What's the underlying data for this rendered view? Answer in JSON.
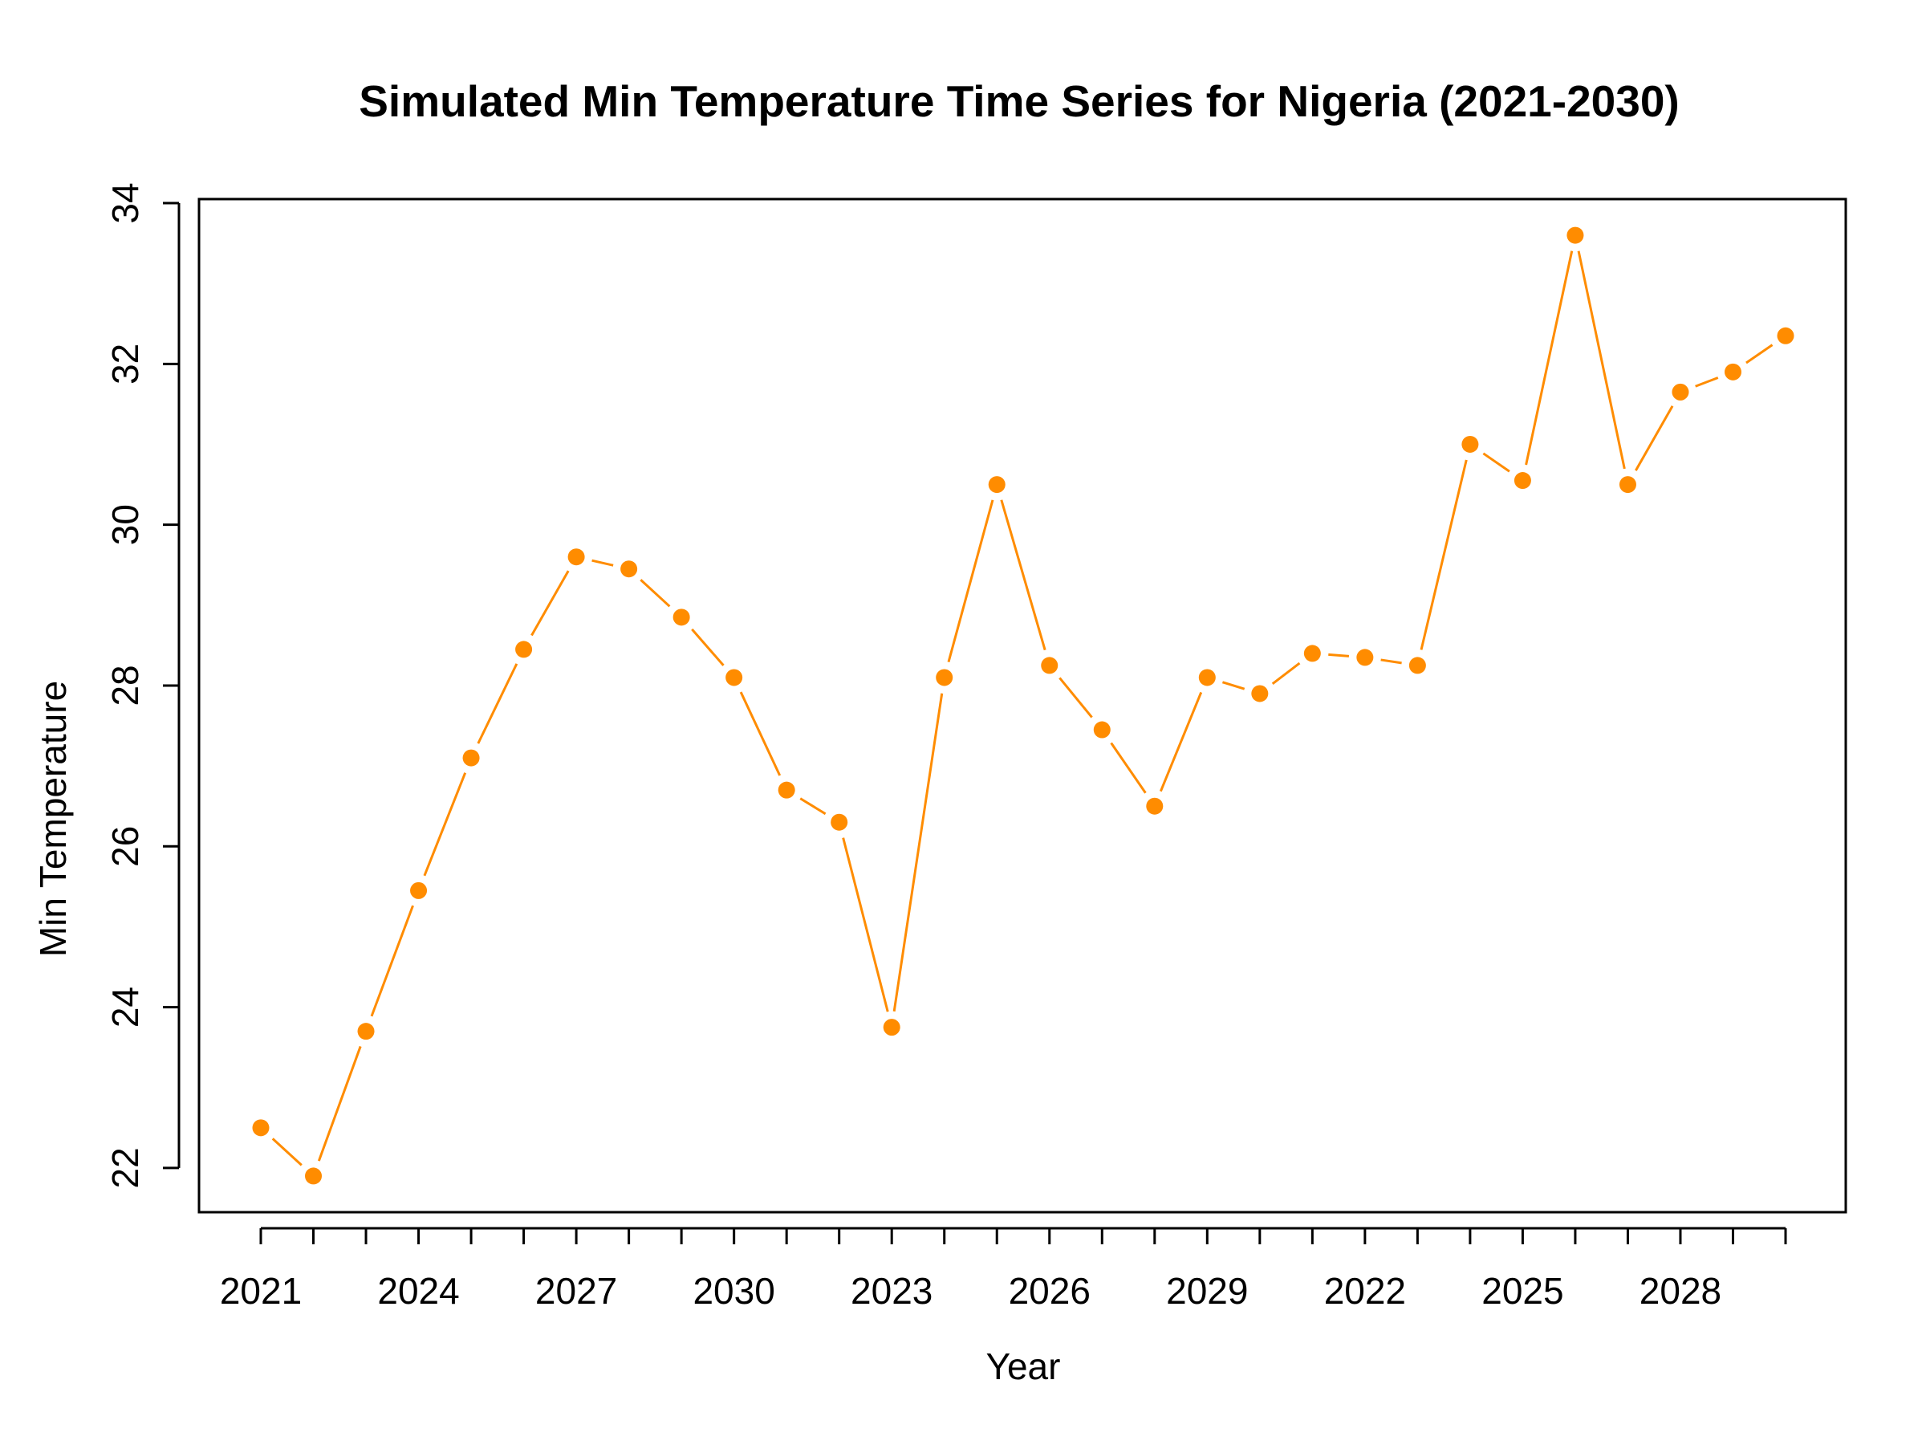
{
  "chart_data": {
    "type": "line",
    "title": "Simulated Min Temperature Time Series for Nigeria (2021-2030)",
    "xlabel": "Year",
    "ylabel": "Min Temperature",
    "x_tick_labels": [
      "2021",
      "2024",
      "2027",
      "2030",
      "2023",
      "2026",
      "2029",
      "2022",
      "2025",
      "2028"
    ],
    "y_ticks": [
      22,
      24,
      26,
      28,
      30,
      32,
      34
    ],
    "ylim": [
      21.45,
      34.05
    ],
    "grid": false,
    "legend": "none",
    "color": "#FF8C00",
    "series": [
      {
        "x": [
          1,
          2,
          3,
          4,
          5,
          6,
          7,
          8,
          9,
          10,
          11,
          12,
          13,
          14,
          15,
          16,
          17,
          18,
          19,
          20,
          21,
          22,
          23,
          24,
          25,
          26,
          27,
          28,
          29,
          30
        ],
        "values": [
          22.5,
          21.9,
          23.7,
          25.45,
          27.1,
          28.45,
          29.6,
          29.45,
          28.85,
          28.1,
          26.7,
          26.3,
          23.75,
          28.1,
          30.5,
          28.25,
          27.45,
          26.5,
          28.1,
          27.9,
          28.4,
          28.35,
          28.25,
          31.0,
          30.55,
          33.6,
          30.5,
          31.65,
          31.9,
          32.35
        ]
      }
    ]
  }
}
